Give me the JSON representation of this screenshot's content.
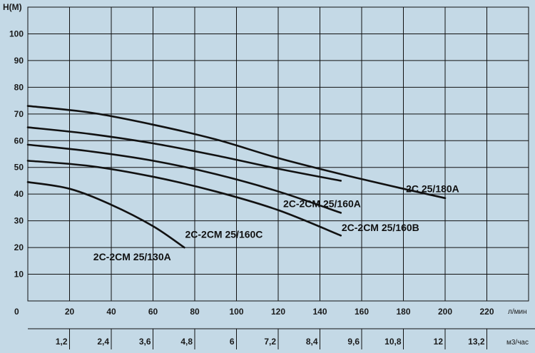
{
  "chart_data": {
    "type": "line",
    "ylabel": "H(M)",
    "x_unit": "л/мин",
    "x2_unit": "м3/час",
    "xlim": [
      0,
      240
    ],
    "ylim": [
      0,
      110
    ],
    "origin_label": "0",
    "x_ticks": [
      "20",
      "40",
      "60",
      "80",
      "100",
      "120",
      "140",
      "160",
      "180",
      "200",
      "220"
    ],
    "x_tick_values": [
      20,
      40,
      60,
      80,
      100,
      120,
      140,
      160,
      180,
      200,
      220
    ],
    "x2_ticks": [
      "1,2",
      "2,4",
      "3,6",
      "4,8",
      "6",
      "7,2",
      "8,4",
      "9,6",
      "10,8",
      "12",
      "13,2"
    ],
    "x2_tick_values": [
      20,
      40,
      60,
      80,
      100,
      120,
      140,
      160,
      180,
      200,
      220
    ],
    "y_ticks": [
      "10",
      "20",
      "30",
      "40",
      "50",
      "60",
      "70",
      "80",
      "90",
      "100"
    ],
    "y_tick_values": [
      10,
      20,
      30,
      40,
      50,
      60,
      70,
      80,
      90,
      100
    ],
    "grid": true,
    "series": [
      {
        "name": "2C 25/180A",
        "x": [
          0,
          30,
          60,
          90,
          120,
          150,
          180,
          200
        ],
        "y": [
          73,
          70.5,
          66,
          60.5,
          53.5,
          47.5,
          42,
          38.5
        ]
      },
      {
        "name": "2C-2CM 25/160A",
        "x": [
          0,
          30,
          60,
          90,
          120,
          150
        ],
        "y": [
          65,
          62.5,
          59,
          54.5,
          49.5,
          45
        ]
      },
      {
        "name": "2C-2CM 25/160B",
        "x": [
          0,
          30,
          60,
          90,
          120,
          150
        ],
        "y": [
          58.5,
          56,
          52.5,
          47.5,
          41,
          33
        ]
      },
      {
        "name": "2C-2CM 25/160C",
        "x": [
          0,
          30,
          60,
          90,
          120,
          150
        ],
        "y": [
          52.5,
          50.5,
          46.5,
          41,
          34,
          24.5
        ]
      },
      {
        "name": "2C-2CM 25/130A",
        "x": [
          0,
          20,
          40,
          60,
          75
        ],
        "y": [
          44.5,
          42,
          36,
          28,
          20
        ]
      }
    ],
    "labels": [
      {
        "text": "2C 25/180A",
        "x": 194,
        "y": 42
      },
      {
        "text": "2C-2CM 25/160A",
        "x": 141,
        "y": 36.5
      },
      {
        "text": "2C-2CM 25/160B",
        "x": 169,
        "y": 27.5
      },
      {
        "text": "2C-2CM 25/160C",
        "x": 94,
        "y": 25
      },
      {
        "text": "2C-2CM 25/130A",
        "x": 50,
        "y": 16.5
      }
    ]
  }
}
